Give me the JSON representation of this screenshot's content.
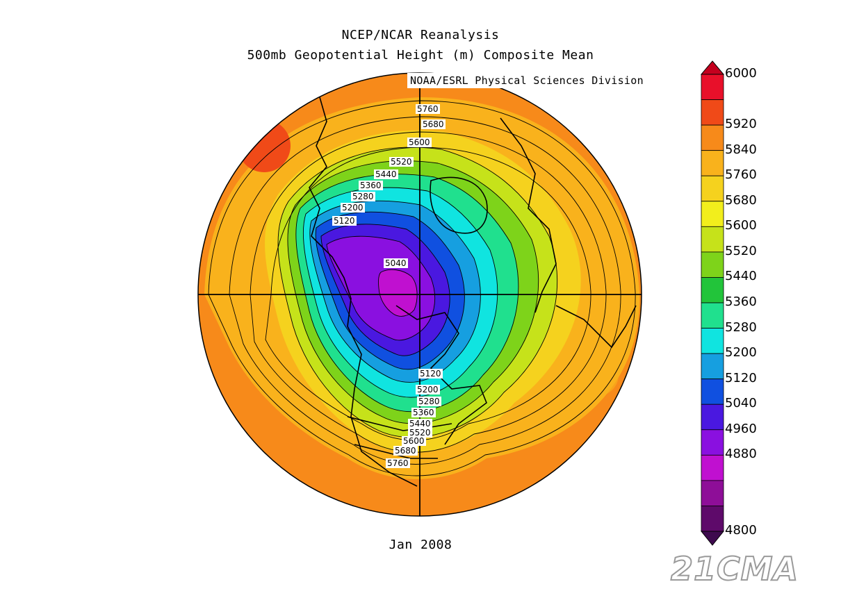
{
  "title_line1": "NCEP/NCAR Reanalysis",
  "title_line2": "500mb Geopotential Height (m) Composite Mean",
  "credit": "NOAA/ESRL Physical Sciences Division",
  "date_label": "Jan 2008",
  "watermark": "21CMA",
  "colorbar": {
    "labels": [
      "6000",
      "5920",
      "5840",
      "5760",
      "5680",
      "5600",
      "5520",
      "5440",
      "5360",
      "5280",
      "5200",
      "5120",
      "5040",
      "4960",
      "4880",
      "4800"
    ],
    "colors": [
      "#e8102a",
      "#f04a18",
      "#f78a1a",
      "#f9b21c",
      "#f5d21e",
      "#f2ee1c",
      "#c6e21a",
      "#7ed31a",
      "#22c43a",
      "#20e08e",
      "#10e4e0",
      "#169fe0",
      "#1050e0",
      "#4a18e0",
      "#8a10e0",
      "#c010d0",
      "#8e0e98",
      "#5e0a6a"
    ]
  },
  "contour_labels_north": [
    "5760",
    "5680",
    "5600",
    "5520",
    "5440",
    "5360",
    "5280",
    "5200",
    "5120"
  ],
  "contour_label_center": "5040",
  "contour_labels_south": [
    "5120",
    "5200",
    "5280",
    "5360",
    "5440",
    "5520",
    "5600",
    "5680",
    "5760"
  ],
  "projection": "north-polar-stereographic",
  "icons": [
    "colorbar-max-arrow-icon",
    "colorbar-min-arrow-icon"
  ]
}
